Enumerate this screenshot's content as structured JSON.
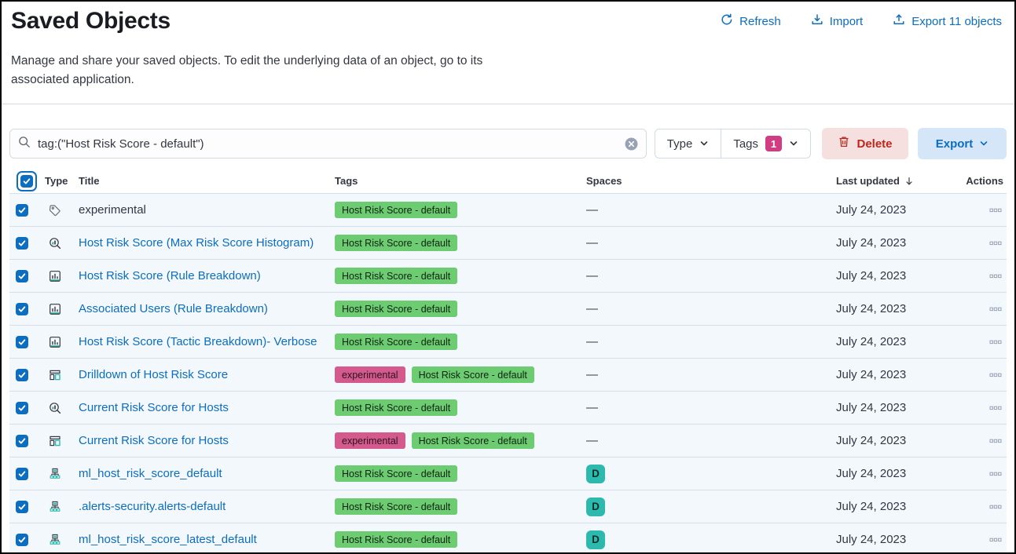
{
  "page": {
    "title": "Saved Objects",
    "description": "Manage and share your saved objects. To edit the underlying data of an object, go to its associated application."
  },
  "header_actions": {
    "refresh": {
      "label": "Refresh",
      "icon": "refresh-icon"
    },
    "import": {
      "label": "Import",
      "icon": "import-icon"
    },
    "export": {
      "label": "Export 11 objects",
      "icon": "export-icon"
    }
  },
  "toolbar": {
    "search": {
      "value": "tag:(\"Host Risk Score - default\")",
      "icon": "search-icon",
      "clear_icon": "clear-icon"
    },
    "type_filter": {
      "label": "Type"
    },
    "tags_filter": {
      "label": "Tags",
      "count": "1"
    },
    "delete_button": {
      "label": "Delete",
      "icon": "trash-icon"
    },
    "export_button": {
      "label": "Export",
      "icon": "chevron-down-icon"
    }
  },
  "table": {
    "columns": [
      "Type",
      "Title",
      "Tags",
      "Spaces",
      "Last updated",
      "Actions"
    ],
    "sort_column": "Last updated",
    "sort_direction": "descending",
    "no_space_symbol": "—",
    "space_badge": {
      "label": "D",
      "bg": "#2eb9ae",
      "fg": "#08302b"
    },
    "tag_styles": {
      "experimental": {
        "bg": "#d4598c",
        "fg": "#2c1420"
      },
      "Host Risk Score - default": {
        "bg": "#6dcb72",
        "fg": "#0e2511"
      }
    },
    "rows": [
      {
        "icon": "tag-icon",
        "type": "tag",
        "title": "experimental",
        "link": false,
        "tags": [
          "Host Risk Score - default"
        ],
        "space": "—",
        "updated": "July 24, 2023"
      },
      {
        "icon": "lens-icon",
        "type": "lens",
        "title": "Host Risk Score (Max Risk Score Histogram)",
        "link": true,
        "tags": [
          "Host Risk Score - default"
        ],
        "space": "—",
        "updated": "July 24, 2023"
      },
      {
        "icon": "visualization-icon",
        "type": "visualization",
        "title": "Host Risk Score (Rule Breakdown)",
        "link": true,
        "tags": [
          "Host Risk Score - default"
        ],
        "space": "—",
        "updated": "July 24, 2023"
      },
      {
        "icon": "visualization-icon",
        "type": "visualization",
        "title": "Associated Users (Rule Breakdown)",
        "link": true,
        "tags": [
          "Host Risk Score - default"
        ],
        "space": "—",
        "updated": "July 24, 2023"
      },
      {
        "icon": "visualization-icon",
        "type": "visualization",
        "title": "Host Risk Score (Tactic Breakdown)- Verbose",
        "link": true,
        "tags": [
          "Host Risk Score - default"
        ],
        "space": "—",
        "updated": "July 24, 2023"
      },
      {
        "icon": "dashboard-icon",
        "type": "dashboard",
        "title": "Drilldown of Host Risk Score",
        "link": true,
        "tags": [
          "experimental",
          "Host Risk Score - default"
        ],
        "space": "—",
        "updated": "July 24, 2023"
      },
      {
        "icon": "lens-icon",
        "type": "lens",
        "title": "Current Risk Score for Hosts",
        "link": true,
        "tags": [
          "Host Risk Score - default"
        ],
        "space": "—",
        "updated": "July 24, 2023"
      },
      {
        "icon": "dashboard-icon",
        "type": "dashboard",
        "title": "Current Risk Score for Hosts",
        "link": true,
        "tags": [
          "experimental",
          "Host Risk Score - default"
        ],
        "space": "—",
        "updated": "July 24, 2023"
      },
      {
        "icon": "ml-job-icon",
        "type": "transform",
        "title": "ml_host_risk_score_default",
        "link": true,
        "tags": [
          "Host Risk Score - default"
        ],
        "space": "D",
        "updated": "July 24, 2023"
      },
      {
        "icon": "ml-job-icon",
        "type": "transform",
        "title": ".alerts-security.alerts-default",
        "link": true,
        "tags": [
          "Host Risk Score - default"
        ],
        "space": "D",
        "updated": "July 24, 2023"
      },
      {
        "icon": "ml-job-icon",
        "type": "transform",
        "title": "ml_host_risk_score_latest_default",
        "link": true,
        "tags": [
          "Host Risk Score - default"
        ],
        "space": "D",
        "updated": "July 24, 2023"
      }
    ]
  },
  "colors": {
    "link_blue": "#0d6dbf",
    "delete_red": "#bd271e",
    "delete_bg": "#f6e0df",
    "export_bg": "#d4e6f7",
    "tags_count_bg": "#d13c82",
    "row_bg": "#f3f8fc",
    "border": "#d3dae6"
  }
}
